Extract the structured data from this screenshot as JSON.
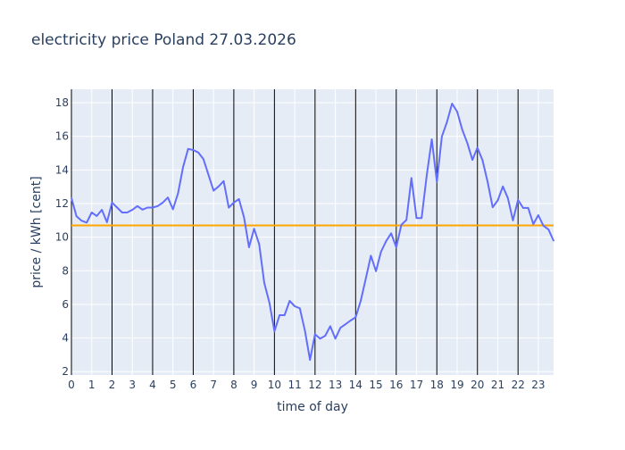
{
  "chart_data": {
    "type": "line",
    "title": "electricity price Poland 27.03.2026",
    "xlabel": "time of day",
    "ylabel": "price / kWh [cent]",
    "xlim": [
      0,
      23.75
    ],
    "ylim": [
      1.8,
      18.8
    ],
    "x_start": 0,
    "x_step": 0.25,
    "x_ticks": [
      0,
      1,
      2,
      3,
      4,
      5,
      6,
      7,
      8,
      9,
      10,
      11,
      12,
      13,
      14,
      15,
      16,
      17,
      18,
      19,
      20,
      21,
      22,
      23
    ],
    "x_tick_labels": [
      "0",
      "1",
      "2",
      "3",
      "4",
      "5",
      "6",
      "7",
      "8",
      "9",
      "10",
      "11",
      "12",
      "13",
      "14",
      "15",
      "16",
      "17",
      "18",
      "19",
      "20",
      "21",
      "22",
      "23"
    ],
    "y_ticks": [
      2,
      4,
      6,
      8,
      10,
      12,
      14,
      16,
      18
    ],
    "y_tick_labels": [
      "2",
      "4",
      "6",
      "8",
      "10",
      "12",
      "14",
      "16",
      "18"
    ],
    "grid": true,
    "vertical_markers": [
      2,
      4,
      6,
      8,
      10,
      12,
      14,
      16,
      18,
      20,
      22
    ],
    "average_line": 10.7,
    "series": [
      {
        "name": "price",
        "color": "#636efa",
        "values": [
          12.33,
          11.24,
          10.98,
          10.87,
          11.47,
          11.26,
          11.63,
          10.89,
          12.06,
          11.76,
          11.47,
          11.47,
          11.63,
          11.85,
          11.64,
          11.76,
          11.76,
          11.85,
          12.06,
          12.36,
          11.66,
          12.61,
          14.19,
          15.25,
          15.19,
          15.04,
          14.65,
          13.71,
          12.77,
          13.02,
          13.34,
          11.76,
          12.06,
          12.27,
          11.18,
          9.4,
          10.5,
          9.58,
          7.27,
          6.12,
          4.4,
          5.36,
          5.36,
          6.21,
          5.89,
          5.77,
          4.44,
          2.7,
          4.22,
          3.96,
          4.13,
          4.7,
          3.96,
          4.61,
          4.82,
          5.04,
          5.23,
          6.21,
          7.54,
          8.9,
          7.98,
          9.13,
          9.76,
          10.23,
          9.4,
          10.73,
          11.03,
          13.52,
          11.14,
          11.14,
          13.66,
          15.82,
          13.3,
          15.99,
          16.85,
          17.95,
          17.47,
          16.4,
          15.6,
          14.6,
          15.32,
          14.58,
          13.3,
          11.78,
          12.19,
          13.02,
          12.33,
          11.0,
          12.22,
          11.74,
          11.74,
          10.78,
          11.31,
          10.68,
          10.46,
          9.79
        ]
      }
    ],
    "average_color": "#ffa500",
    "marker_color": "#000000"
  }
}
